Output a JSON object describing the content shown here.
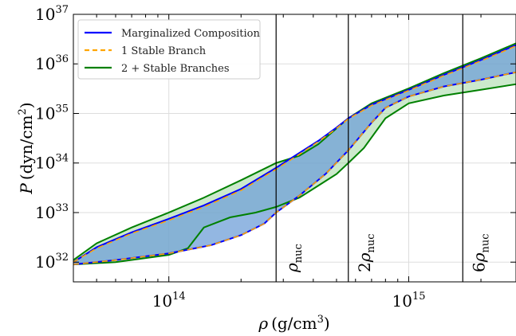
{
  "chart_data": {
    "type": "area",
    "xlabel_main": "ρ",
    "xlabel_unit": "(g/cm",
    "xlabel_exp": "3",
    "xlabel_close": ")",
    "ylabel_main": "P",
    "ylabel_unit": "(dyn/cm",
    "ylabel_exp": "2",
    "ylabel_close": ")",
    "xscale": "log",
    "yscale": "log",
    "xlim": [
      40000000000000.0,
      2800000000000000.0
    ],
    "ylim": [
      4e+31,
      1e+37
    ],
    "grid": true,
    "legend_position": "top-left",
    "x_tick_labels": [
      {
        "value": 100000000000000.0,
        "base": "10",
        "exp": "14"
      },
      {
        "value": 1000000000000000.0,
        "base": "10",
        "exp": "15"
      }
    ],
    "y_tick_labels": [
      {
        "value": 1e+32,
        "base": "10",
        "exp": "32"
      },
      {
        "value": 1e+33,
        "base": "10",
        "exp": "33"
      },
      {
        "value": 1e+34,
        "base": "10",
        "exp": "34"
      },
      {
        "value": 1e+35,
        "base": "10",
        "exp": "35"
      },
      {
        "value": 1e+36,
        "base": "10",
        "exp": "36"
      },
      {
        "value": 1e+37,
        "base": "10",
        "exp": "37"
      }
    ],
    "vertical_lines": [
      {
        "x": 280000000000000.0,
        "label_prefix": "",
        "label_sub": "nuc"
      },
      {
        "x": 560000000000000.0,
        "label_prefix": "2",
        "label_sub": "nuc"
      },
      {
        "x": 1680000000000000.0,
        "label_prefix": "6",
        "label_sub": "nuc"
      }
    ],
    "series": [
      {
        "name": "Marginalized Composition",
        "color": "#0000ff",
        "fill": "#6f9fd8",
        "upper": [
          [
            40000000000000.0,
            1e+32
          ],
          [
            50000000000000.0,
            2e+32
          ],
          [
            70000000000000.0,
            4e+32
          ],
          [
            100000000000000.0,
            7.5e+32
          ],
          [
            140000000000000.0,
            1.4e+33
          ],
          [
            200000000000000.0,
            3e+33
          ],
          [
            280000000000000.0,
            8e+33
          ],
          [
            350000000000000.0,
            1.6e+34
          ],
          [
            420000000000000.0,
            2.8e+34
          ],
          [
            500000000000000.0,
            5.2e+34
          ],
          [
            560000000000000.0,
            8e+34
          ],
          [
            700000000000000.0,
            1.5e+35
          ],
          [
            1000000000000000.0,
            3e+35
          ],
          [
            1400000000000000.0,
            6e+35
          ],
          [
            2000000000000000.0,
            1.2e+36
          ],
          [
            2800000000000000.0,
            2.4e+36
          ]
        ],
        "lower": [
          [
            40000000000000.0,
            9e+31
          ],
          [
            60000000000000.0,
            1.1e+32
          ],
          [
            100000000000000.0,
            1.5e+32
          ],
          [
            150000000000000.0,
            2.2e+32
          ],
          [
            200000000000000.0,
            3.5e+32
          ],
          [
            250000000000000.0,
            6e+32
          ],
          [
            280000000000000.0,
            1e+33
          ],
          [
            350000000000000.0,
            2.2e+33
          ],
          [
            450000000000000.0,
            6e+33
          ],
          [
            560000000000000.0,
            1.8e+34
          ],
          [
            700000000000000.0,
            6.5e+34
          ],
          [
            800000000000000.0,
            1.3e+35
          ],
          [
            1000000000000000.0,
            2.2e+35
          ],
          [
            1400000000000000.0,
            3.5e+35
          ],
          [
            2000000000000000.0,
            4.8e+35
          ],
          [
            2800000000000000.0,
            6.8e+35
          ]
        ]
      },
      {
        "name": "1 Stable Branch",
        "color": "#ffa500",
        "fill": "#e0b060",
        "upper": [
          [
            40000000000000.0,
            1e+32
          ],
          [
            50000000000000.0,
            1.9e+32
          ],
          [
            70000000000000.0,
            3.8e+32
          ],
          [
            100000000000000.0,
            7e+32
          ],
          [
            140000000000000.0,
            1.3e+33
          ],
          [
            200000000000000.0,
            2.8e+33
          ],
          [
            280000000000000.0,
            7.5e+33
          ],
          [
            350000000000000.0,
            1.5e+34
          ],
          [
            420000000000000.0,
            2.7e+34
          ],
          [
            500000000000000.0,
            5e+34
          ],
          [
            560000000000000.0,
            7.8e+34
          ],
          [
            700000000000000.0,
            1.45e+35
          ],
          [
            1000000000000000.0,
            2.9e+35
          ],
          [
            1400000000000000.0,
            5.8e+35
          ],
          [
            2000000000000000.0,
            1.15e+36
          ],
          [
            2800000000000000.0,
            2.3e+36
          ]
        ],
        "lower": [
          [
            40000000000000.0,
            9e+31
          ],
          [
            60000000000000.0,
            1.1e+32
          ],
          [
            100000000000000.0,
            1.5e+32
          ],
          [
            150000000000000.0,
            2.2e+32
          ],
          [
            200000000000000.0,
            3.5e+32
          ],
          [
            250000000000000.0,
            6e+32
          ],
          [
            280000000000000.0,
            1e+33
          ],
          [
            350000000000000.0,
            2.2e+33
          ],
          [
            450000000000000.0,
            6e+33
          ],
          [
            560000000000000.0,
            1.8e+34
          ],
          [
            700000000000000.0,
            6.5e+34
          ],
          [
            800000000000000.0,
            1.3e+35
          ],
          [
            1000000000000000.0,
            2.2e+35
          ],
          [
            1400000000000000.0,
            3.5e+35
          ],
          [
            2000000000000000.0,
            4.8e+35
          ],
          [
            2800000000000000.0,
            6.8e+35
          ]
        ]
      },
      {
        "name": "2 + Stable Branches",
        "color": "#008000",
        "fill": "#8fcf8f",
        "upper": [
          [
            40000000000000.0,
            1.1e+32
          ],
          [
            50000000000000.0,
            2.4e+32
          ],
          [
            70000000000000.0,
            5e+32
          ],
          [
            100000000000000.0,
            1e+33
          ],
          [
            140000000000000.0,
            2e+33
          ],
          [
            200000000000000.0,
            4.5e+33
          ],
          [
            280000000000000.0,
            1e+34
          ],
          [
            350000000000000.0,
            1.4e+34
          ],
          [
            420000000000000.0,
            2.4e+34
          ],
          [
            500000000000000.0,
            5e+34
          ],
          [
            560000000000000.0,
            8e+34
          ],
          [
            700000000000000.0,
            1.6e+35
          ],
          [
            1000000000000000.0,
            3.2e+35
          ],
          [
            1400000000000000.0,
            6.5e+35
          ],
          [
            2000000000000000.0,
            1.3e+36
          ],
          [
            2800000000000000.0,
            2.6e+36
          ]
        ],
        "lower": [
          [
            40000000000000.0,
            9e+31
          ],
          [
            60000000000000.0,
            1e+32
          ],
          [
            100000000000000.0,
            1.4e+32
          ],
          [
            120000000000000.0,
            1.9e+32
          ],
          [
            140000000000000.0,
            5e+32
          ],
          [
            180000000000000.0,
            8e+32
          ],
          [
            230000000000000.0,
            1e+33
          ],
          [
            280000000000000.0,
            1.3e+33
          ],
          [
            350000000000000.0,
            2e+33
          ],
          [
            420000000000000.0,
            3.5e+33
          ],
          [
            500000000000000.0,
            6e+33
          ],
          [
            560000000000000.0,
            1e+34
          ],
          [
            650000000000000.0,
            2e+34
          ],
          [
            800000000000000.0,
            8e+34
          ],
          [
            1000000000000000.0,
            1.6e+35
          ],
          [
            1400000000000000.0,
            2.3e+35
          ],
          [
            2000000000000000.0,
            3e+35
          ],
          [
            2800000000000000.0,
            3.9e+35
          ]
        ]
      }
    ]
  }
}
